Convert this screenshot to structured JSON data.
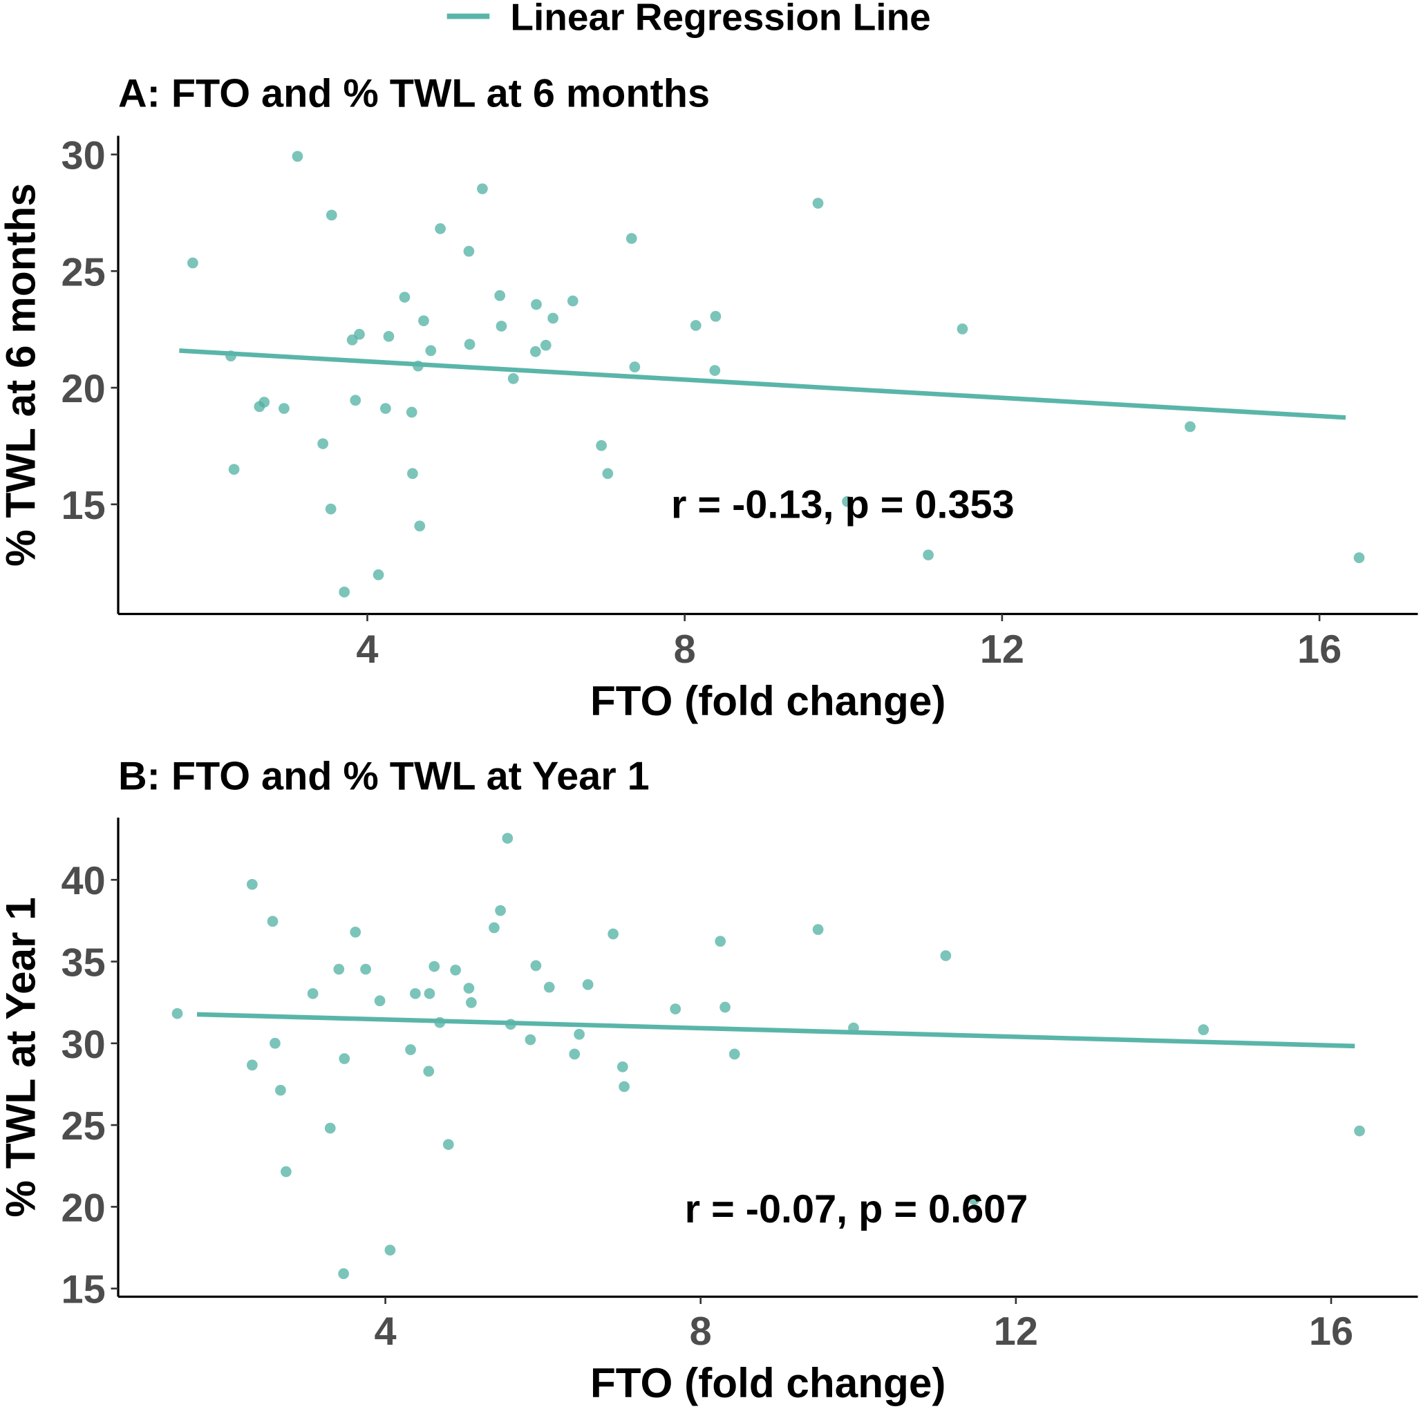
{
  "legend": {
    "label": "Linear Regression Line",
    "color": "#5ab5a9",
    "placement": "top"
  },
  "colors": {
    "point": "#4fb0a2",
    "line": "#5ab5a9",
    "axis": "#000000",
    "tick_text": "#4d4d4d"
  },
  "chart_data": [
    {
      "type": "scatter",
      "title": "A: FTO and % TWL at 6 months",
      "xlabel": "FTO (fold change)",
      "ylabel": "% TWL at 6 months",
      "xlim": [
        0.86,
        17.24
      ],
      "ylim": [
        10.3,
        30.8
      ],
      "xticks": [
        4,
        8,
        12,
        16
      ],
      "yticks": [
        15,
        20,
        25,
        30
      ],
      "grid": false,
      "annotation": "r = -0.13, p = 0.353",
      "regression_line": [
        [
          1.63,
          21.59
        ],
        [
          16.33,
          18.72
        ]
      ],
      "points": [
        [
          1.8,
          25.35
        ],
        [
          3.12,
          29.92
        ],
        [
          3.55,
          27.4
        ],
        [
          2.28,
          21.36
        ],
        [
          2.32,
          16.5
        ],
        [
          2.64,
          19.19
        ],
        [
          2.7,
          19.38
        ],
        [
          2.95,
          19.11
        ],
        [
          3.44,
          17.6
        ],
        [
          3.54,
          14.8
        ],
        [
          3.71,
          11.24
        ],
        [
          3.81,
          22.05
        ],
        [
          3.9,
          22.29
        ],
        [
          3.85,
          19.46
        ],
        [
          4.14,
          11.98
        ],
        [
          4.23,
          19.11
        ],
        [
          4.27,
          22.2
        ],
        [
          4.47,
          23.88
        ],
        [
          4.56,
          18.95
        ],
        [
          4.57,
          16.32
        ],
        [
          4.64,
          20.93
        ],
        [
          4.66,
          14.07
        ],
        [
          4.71,
          22.87
        ],
        [
          4.8,
          21.59
        ],
        [
          4.92,
          26.82
        ],
        [
          5.28,
          25.85
        ],
        [
          5.29,
          21.86
        ],
        [
          5.45,
          28.53
        ],
        [
          5.67,
          23.95
        ],
        [
          5.69,
          22.64
        ],
        [
          5.84,
          20.39
        ],
        [
          6.12,
          21.55
        ],
        [
          6.13,
          23.57
        ],
        [
          6.25,
          21.82
        ],
        [
          6.34,
          22.98
        ],
        [
          6.59,
          23.72
        ],
        [
          6.95,
          17.52
        ],
        [
          7.03,
          16.32
        ],
        [
          7.33,
          26.4
        ],
        [
          7.37,
          20.89
        ],
        [
          8.14,
          22.67
        ],
        [
          8.38,
          20.74
        ],
        [
          8.39,
          23.06
        ],
        [
          9.68,
          27.91
        ],
        [
          10.05,
          15.12
        ],
        [
          11.07,
          12.83
        ],
        [
          11.5,
          22.52
        ],
        [
          14.37,
          18.33
        ],
        [
          16.5,
          12.71
        ]
      ]
    },
    {
      "type": "scatter",
      "title": "B: FTO and % TWL at Year 1",
      "xlabel": "FTO (fold change)",
      "ylabel": "% TWL at Year 1",
      "xlim": [
        0.61,
        17.1
      ],
      "ylim": [
        14.5,
        43.8
      ],
      "xticks": [
        4,
        8,
        12,
        16
      ],
      "yticks": [
        15,
        20,
        25,
        30,
        35,
        40
      ],
      "grid": false,
      "annotation": "r = -0.07, p = 0.607",
      "regression_line": [
        [
          1.61,
          31.77
        ],
        [
          16.3,
          29.83
        ]
      ],
      "points": [
        [
          1.36,
          31.82
        ],
        [
          2.31,
          39.72
        ],
        [
          2.31,
          28.67
        ],
        [
          2.57,
          37.46
        ],
        [
          2.6,
          30.0
        ],
        [
          2.67,
          27.13
        ],
        [
          2.74,
          22.15
        ],
        [
          3.08,
          33.04
        ],
        [
          3.3,
          24.81
        ],
        [
          3.41,
          34.53
        ],
        [
          3.48,
          29.06
        ],
        [
          3.47,
          15.91
        ],
        [
          3.62,
          36.8
        ],
        [
          3.75,
          34.53
        ],
        [
          3.93,
          32.6
        ],
        [
          4.06,
          17.35
        ],
        [
          4.32,
          29.61
        ],
        [
          4.38,
          33.04
        ],
        [
          4.55,
          28.29
        ],
        [
          4.56,
          33.04
        ],
        [
          4.62,
          34.7
        ],
        [
          4.69,
          31.27
        ],
        [
          4.8,
          23.81
        ],
        [
          4.89,
          34.48
        ],
        [
          5.06,
          33.37
        ],
        [
          5.09,
          32.49
        ],
        [
          5.38,
          37.07
        ],
        [
          5.46,
          38.12
        ],
        [
          5.55,
          42.54
        ],
        [
          5.59,
          31.16
        ],
        [
          5.84,
          30.22
        ],
        [
          5.91,
          34.75
        ],
        [
          6.08,
          33.43
        ],
        [
          6.4,
          29.34
        ],
        [
          6.46,
          30.55
        ],
        [
          6.57,
          33.59
        ],
        [
          6.89,
          36.69
        ],
        [
          7.01,
          28.56
        ],
        [
          7.03,
          27.35
        ],
        [
          7.68,
          32.1
        ],
        [
          8.25,
          36.24
        ],
        [
          8.31,
          32.21
        ],
        [
          8.43,
          29.34
        ],
        [
          9.49,
          36.96
        ],
        [
          9.94,
          30.94
        ],
        [
          11.11,
          35.36
        ],
        [
          11.47,
          20.44
        ],
        [
          14.38,
          30.83
        ],
        [
          16.36,
          24.64
        ]
      ]
    }
  ]
}
